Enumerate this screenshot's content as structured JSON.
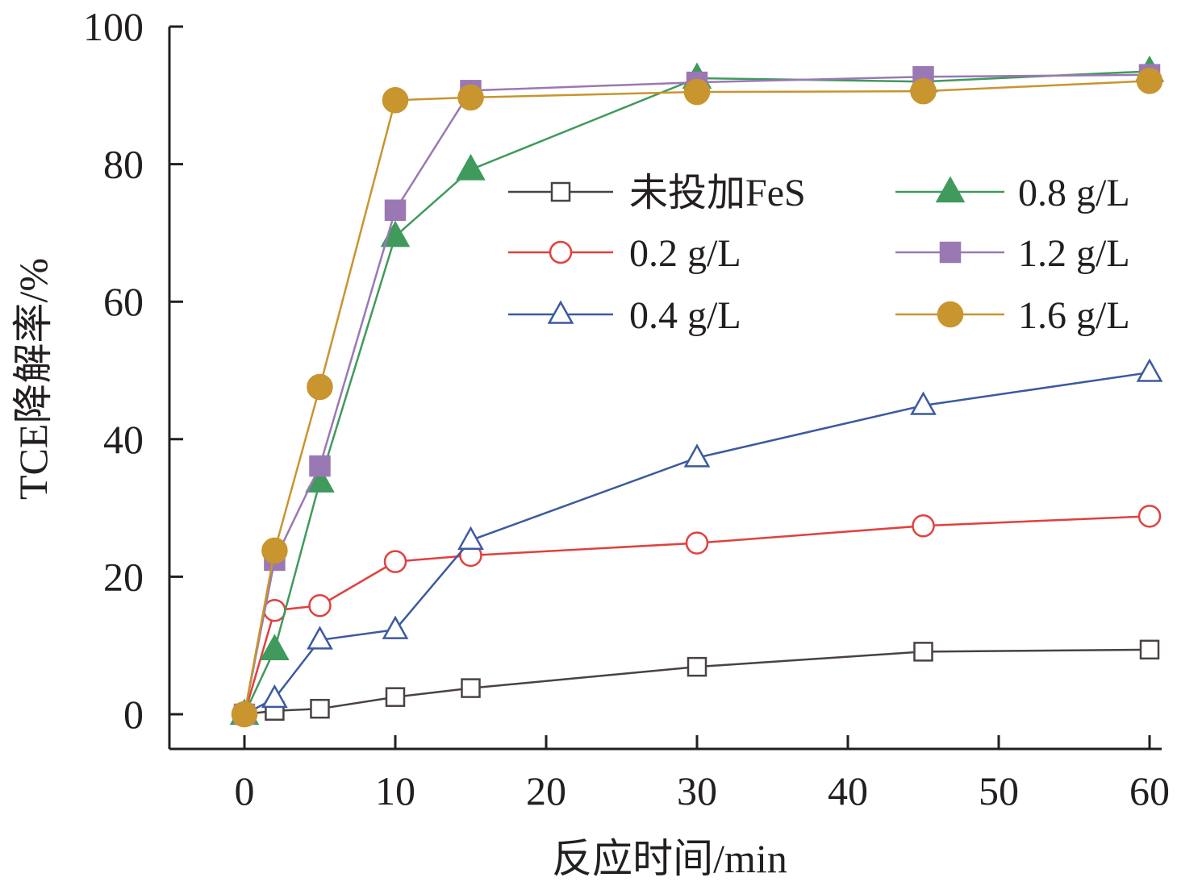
{
  "chart_data": {
    "type": "line",
    "title": "",
    "xlabel": "反应时间/min",
    "ylabel": "TCE降解率/%",
    "xlim": [
      -5,
      60
    ],
    "ylim": [
      -5,
      100
    ],
    "xticks": [
      "0",
      "10",
      "20",
      "30",
      "40",
      "50",
      "60"
    ],
    "yticks": [
      "0",
      "20",
      "40",
      "60",
      "80",
      "100"
    ],
    "grid": false,
    "legend_position": "center-right",
    "x": [
      0,
      2,
      5,
      10,
      15,
      30,
      45,
      60
    ],
    "series": [
      {
        "name": "未投加FeS",
        "color": "#4a4242",
        "marker": "square-open",
        "values": [
          0,
          0.5,
          0.8,
          2.5,
          3.8,
          6.9,
          9.1,
          9.4
        ]
      },
      {
        "name": "0.2 g/L",
        "color": "#e0413e",
        "marker": "circle-open",
        "values": [
          0,
          15.1,
          15.8,
          22.2,
          23.1,
          24.9,
          27.4,
          28.8
        ]
      },
      {
        "name": "0.4 g/L",
        "color": "#3c5aa0",
        "marker": "triangle-open",
        "values": [
          0,
          2.3,
          10.8,
          12.3,
          25.3,
          37.3,
          44.9,
          49.7
        ]
      },
      {
        "name": "0.8 g/L",
        "color": "#3f9a5c",
        "marker": "triangle-filled",
        "values": [
          0,
          9.4,
          33.8,
          69.5,
          79.2,
          92.5,
          92.0,
          93.5
        ]
      },
      {
        "name": "1.2 g/L",
        "color": "#9a78b4",
        "marker": "square-filled",
        "values": [
          0,
          22.4,
          36.1,
          73.3,
          90.7,
          91.9,
          92.7,
          93.0
        ]
      },
      {
        "name": "1.6 g/L",
        "color": "#c8952e",
        "marker": "circle-filled",
        "values": [
          0,
          23.8,
          47.6,
          89.3,
          89.7,
          90.5,
          90.6,
          92.1
        ]
      }
    ]
  }
}
